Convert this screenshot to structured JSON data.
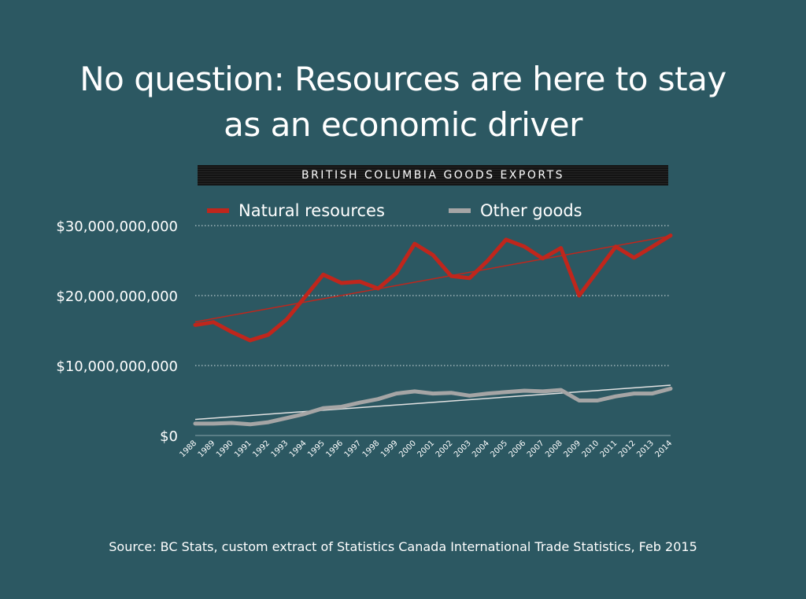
{
  "slide": {
    "title_line1": "No question: Resources are here to stay",
    "title_line2": "as an economic driver",
    "source": "Source: BC Stats, custom extract of Statistics Canada International Trade Statistics, Feb 2015",
    "background_color": "#2c5862"
  },
  "chart_data": {
    "type": "line",
    "title": "BRITISH COLUMBIA GOODS EXPORTS",
    "xlabel": "",
    "ylabel": "",
    "ylim": [
      0,
      30000000000
    ],
    "yticks": [
      0,
      10000000000,
      20000000000,
      30000000000
    ],
    "ytick_labels": [
      "$0",
      "$10,000,000,000",
      "$20,000,000,000",
      "$30,000,000,000"
    ],
    "grid": "horizontal dotted",
    "legend_position": "top",
    "x": [
      "1988",
      "1989",
      "1990",
      "1991",
      "1992",
      "1993",
      "1994",
      "1995",
      "1996",
      "1997",
      "1998",
      "1999",
      "2000",
      "2001",
      "2002",
      "2003",
      "2004",
      "2005",
      "2006",
      "2007",
      "2008",
      "2009",
      "2010",
      "2011",
      "2012",
      "2013",
      "2014"
    ],
    "series": [
      {
        "name": "Natural resources",
        "color": "#c0261c",
        "trendline": true,
        "values": [
          15800000000,
          16200000000,
          14800000000,
          13600000000,
          14400000000,
          16600000000,
          19800000000,
          23000000000,
          21800000000,
          22000000000,
          21000000000,
          23200000000,
          27400000000,
          25800000000,
          22800000000,
          22500000000,
          25000000000,
          28000000000,
          27000000000,
          25300000000,
          26800000000,
          20000000000,
          23500000000,
          27000000000,
          25400000000,
          27000000000,
          28600000000
        ]
      },
      {
        "name": "Other goods",
        "color": "#a5a5a5",
        "trendline": true,
        "values": [
          1700000000,
          1700000000,
          1800000000,
          1600000000,
          1900000000,
          2500000000,
          3100000000,
          3900000000,
          4100000000,
          4700000000,
          5200000000,
          6000000000,
          6300000000,
          6000000000,
          6100000000,
          5700000000,
          6000000000,
          6200000000,
          6400000000,
          6300000000,
          6500000000,
          5000000000,
          5000000000,
          5600000000,
          6000000000,
          6000000000,
          6700000000
        ]
      }
    ]
  }
}
